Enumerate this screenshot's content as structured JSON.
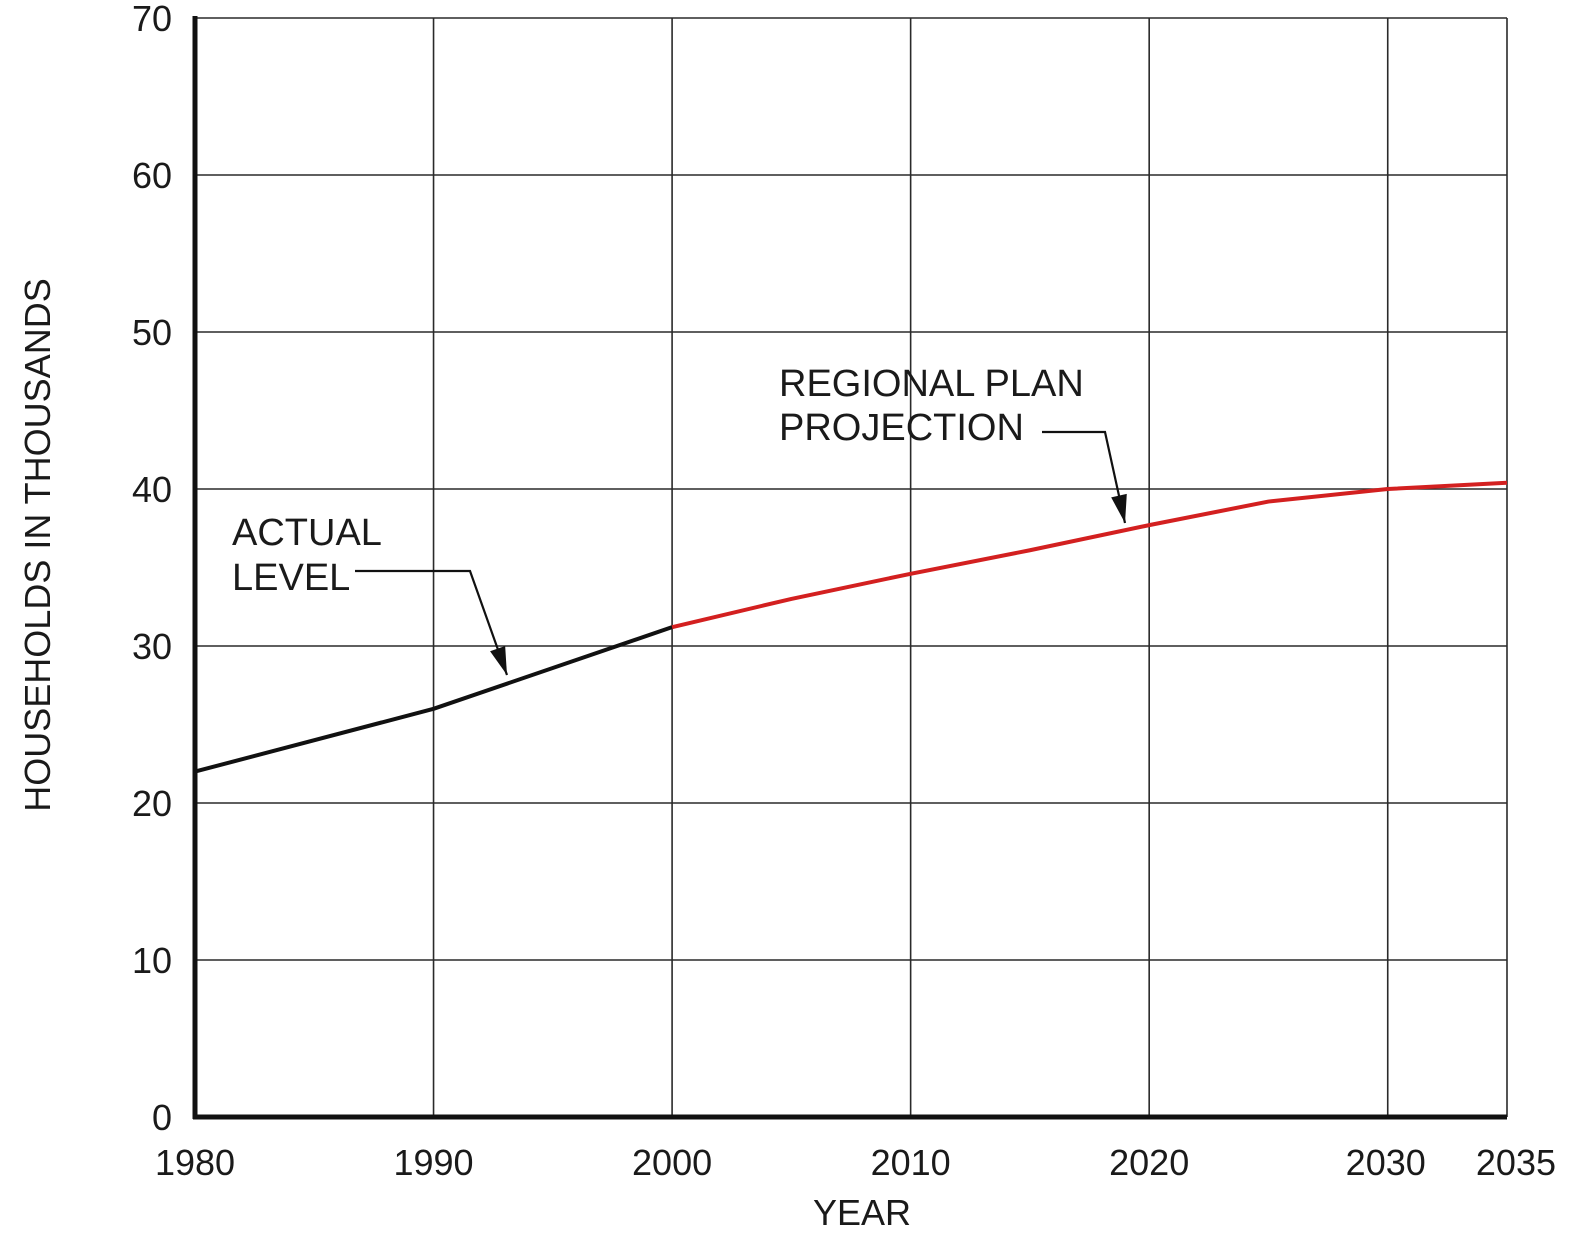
{
  "chart_data": {
    "type": "line",
    "title": "",
    "xlabel": "YEAR",
    "ylabel": "HOUSEHOLDS IN  THOUSANDS",
    "xlim": [
      1980,
      2035
    ],
    "ylim": [
      0,
      70
    ],
    "x_ticks": [
      1980,
      1990,
      2000,
      2010,
      2020,
      2030,
      2035
    ],
    "y_ticks": [
      0,
      10,
      20,
      30,
      40,
      50,
      60,
      70
    ],
    "grid": true,
    "colors": {
      "actual": "#111111",
      "projection": "#d32020",
      "grid": "#2a2a2a"
    },
    "series": [
      {
        "name": "ACTUAL LEVEL",
        "x": [
          1980,
          1990,
          2000
        ],
        "y": [
          22.0,
          26.0,
          31.2
        ]
      },
      {
        "name": "REGIONAL PLAN PROJECTION",
        "x": [
          2000,
          2005,
          2010,
          2015,
          2020,
          2025,
          2030,
          2035
        ],
        "y": [
          31.2,
          33.0,
          34.6,
          36.1,
          37.7,
          39.2,
          40.0,
          40.4
        ]
      }
    ],
    "annotations": [
      {
        "lines": [
          "ACTUAL",
          "LEVEL"
        ],
        "series": 0
      },
      {
        "lines": [
          "REGIONAL PLAN",
          "PROJECTION"
        ],
        "series": 1
      }
    ]
  }
}
